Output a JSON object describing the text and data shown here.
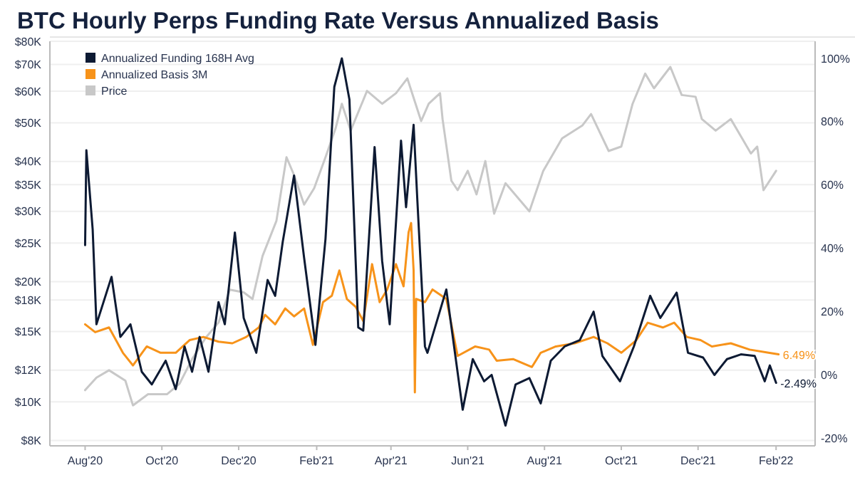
{
  "chart_data": {
    "type": "line",
    "title": "BTC Hourly Perps Funding Rate Versus Annualized Basis",
    "log": "y",
    "grid": "y",
    "legend": "top left",
    "marker": "none",
    "line_style": "solid",
    "xlim": [
      "2020-07-04",
      "2022-03-04"
    ],
    "xticks": [
      {
        "value": "2020-08-01",
        "label": "Aug'20"
      },
      {
        "value": "2020-10-01",
        "label": "Oct'20"
      },
      {
        "value": "2020-12-01",
        "label": "Dec'20"
      },
      {
        "value": "2021-02-01",
        "label": "Feb'21"
      },
      {
        "value": "2021-04-01",
        "label": "Apr'21"
      },
      {
        "value": "2021-06-01",
        "label": "Jun'21"
      },
      {
        "value": "2021-08-01",
        "label": "Aug'21"
      },
      {
        "value": "2021-10-01",
        "label": "Oct'21"
      },
      {
        "value": "2021-12-01",
        "label": "Dec'21"
      },
      {
        "value": "2022-02-01",
        "label": "Feb'22"
      }
    ],
    "ylim": [
      7760,
      80000
    ],
    "yticks": [
      {
        "value": 8000,
        "label": "$8K"
      },
      {
        "value": 10000,
        "label": "$10K"
      },
      {
        "value": 12000,
        "label": "$12K"
      },
      {
        "value": 15000,
        "label": "$15K"
      },
      {
        "value": 18000,
        "label": "$18K"
      },
      {
        "value": 20000,
        "label": "$20K"
      },
      {
        "value": 25000,
        "label": "$25K"
      },
      {
        "value": 30000,
        "label": "$30K"
      },
      {
        "value": 35000,
        "label": "$35K"
      },
      {
        "value": 40000,
        "label": "$40K"
      },
      {
        "value": 50000,
        "label": "$50K"
      },
      {
        "value": 60000,
        "label": "$60K"
      },
      {
        "value": 70000,
        "label": "$70K"
      },
      {
        "value": 80000,
        "label": "$80K"
      }
    ],
    "y2lim": [
      -22.4,
      105.4
    ],
    "y2ticks": [
      {
        "value": -20,
        "label": "-20%"
      },
      {
        "value": 0,
        "label": "0%"
      },
      {
        "value": 20,
        "label": "20%"
      },
      {
        "value": 40,
        "label": "40%"
      },
      {
        "value": 60,
        "label": "60%"
      },
      {
        "value": 80,
        "label": "80%"
      },
      {
        "value": 100,
        "label": "100%"
      }
    ],
    "series": [
      {
        "name": "Annualized Funding 168H Avg",
        "color": "#0d1a33",
        "axis": "y2",
        "x": [
          "2020-08-01",
          "2020-08-02",
          "2020-08-07",
          "2020-08-10",
          "2020-08-22",
          "2020-08-29",
          "2020-09-06",
          "2020-09-15",
          "2020-09-23",
          "2020-10-04",
          "2020-10-12",
          "2020-10-19",
          "2020-10-25",
          "2020-10-31",
          "2020-11-07",
          "2020-11-15",
          "2020-11-20",
          "2020-11-28",
          "2020-12-05",
          "2020-12-15",
          "2020-12-24",
          "2020-12-30",
          "2021-01-05",
          "2021-01-14",
          "2021-01-22",
          "2021-01-31",
          "2021-02-08",
          "2021-02-15",
          "2021-02-21",
          "2021-02-27",
          "2021-03-06",
          "2021-03-10",
          "2021-03-19",
          "2021-03-25",
          "2021-03-31",
          "2021-04-09",
          "2021-04-13",
          "2021-04-19",
          "2021-04-22",
          "2021-04-28",
          "2021-04-30",
          "2021-05-15",
          "2021-05-28",
          "2021-06-05",
          "2021-06-14",
          "2021-06-20",
          "2021-07-01",
          "2021-07-09",
          "2021-07-20",
          "2021-07-29",
          "2021-08-06",
          "2021-08-17",
          "2021-08-29",
          "2021-09-09",
          "2021-09-16",
          "2021-09-30",
          "2021-10-11",
          "2021-10-24",
          "2021-11-01",
          "2021-11-14",
          "2021-11-23",
          "2021-12-05",
          "2021-12-14",
          "2021-12-24",
          "2022-01-04",
          "2022-01-15",
          "2022-01-23",
          "2022-01-27",
          "2022-02-01"
        ],
        "values": [
          41,
          71,
          46,
          16,
          31,
          12,
          16,
          1,
          -3,
          4.5,
          -4.5,
          9,
          1,
          12,
          1,
          23,
          16,
          45,
          18,
          7,
          30,
          25,
          42,
          63,
          37,
          9.5,
          43,
          91,
          100,
          87,
          15,
          14,
          72,
          36,
          16,
          74,
          53,
          79,
          55,
          9,
          7,
          27,
          -11,
          5,
          -2,
          0,
          -16,
          -3,
          -1,
          -9,
          4.5,
          9,
          11,
          20,
          6,
          -2,
          9,
          25,
          18,
          26,
          7,
          5.5,
          0,
          5,
          6.5,
          6,
          -2,
          3,
          -2.49
        ],
        "value_labels": [
          null,
          null,
          null,
          null,
          null,
          null,
          null,
          null,
          null,
          null,
          null,
          null,
          null,
          null,
          null,
          null,
          null,
          null,
          null,
          null,
          null,
          null,
          null,
          null,
          null,
          null,
          null,
          null,
          null,
          null,
          null,
          null,
          null,
          null,
          null,
          null,
          null,
          null,
          null,
          null,
          null,
          null,
          null,
          null,
          null,
          null,
          null,
          null,
          null,
          null,
          null,
          null,
          null,
          null,
          null,
          null,
          null,
          null,
          null,
          null,
          null,
          null,
          null,
          null,
          null,
          null,
          null,
          null,
          "-2.49%"
        ]
      },
      {
        "name": "Annualized Basis 3M",
        "color": "#f7931a",
        "axis": "y2",
        "x": [
          "2020-08-01",
          "2020-08-09",
          "2020-08-20",
          "2020-08-31",
          "2020-09-08",
          "2020-09-19",
          "2020-09-30",
          "2020-10-12",
          "2020-10-23",
          "2020-11-03",
          "2020-11-15",
          "2020-11-26",
          "2020-12-07",
          "2020-12-17",
          "2020-12-22",
          "2020-12-30",
          "2021-01-07",
          "2021-01-14",
          "2021-01-22",
          "2021-01-29",
          "2021-02-06",
          "2021-02-13",
          "2021-02-19",
          "2021-02-25",
          "2021-03-04",
          "2021-03-10",
          "2021-03-17",
          "2021-03-23",
          "2021-03-29",
          "2021-04-05",
          "2021-04-11",
          "2021-04-15",
          "2021-04-17",
          "2021-04-19",
          "2021-04-20",
          "2021-04-21",
          "2021-04-28",
          "2021-05-04",
          "2021-05-15",
          "2021-05-24",
          "2021-06-07",
          "2021-06-18",
          "2021-06-24",
          "2021-07-07",
          "2021-07-22",
          "2021-07-29",
          "2021-08-10",
          "2021-08-25",
          "2021-09-09",
          "2021-09-20",
          "2021-10-01",
          "2021-10-13",
          "2021-10-22",
          "2021-11-03",
          "2021-11-12",
          "2021-11-22",
          "2021-12-03",
          "2021-12-12",
          "2021-12-27",
          "2022-01-11",
          "2022-01-26",
          "2022-02-03"
        ],
        "values": [
          16,
          13.5,
          15,
          7,
          3,
          9,
          7,
          7,
          11,
          12,
          10.5,
          10,
          12,
          15,
          19,
          16,
          21,
          18.5,
          21,
          9.5,
          23,
          25,
          33,
          24,
          21.5,
          17,
          35,
          23,
          27,
          35,
          28,
          45,
          48,
          33,
          -5.5,
          24,
          23,
          27,
          24,
          6,
          9,
          8,
          4.5,
          5,
          2.5,
          7,
          9,
          10,
          12,
          10,
          7,
          11,
          16.5,
          15,
          16.5,
          12,
          11,
          9,
          10,
          8,
          7,
          6.49
        ],
        "value_labels": [
          null,
          null,
          null,
          null,
          null,
          null,
          null,
          null,
          null,
          null,
          null,
          null,
          null,
          null,
          null,
          null,
          null,
          null,
          null,
          null,
          null,
          null,
          null,
          null,
          null,
          null,
          null,
          null,
          null,
          null,
          null,
          null,
          null,
          null,
          null,
          null,
          null,
          null,
          null,
          null,
          null,
          null,
          null,
          null,
          null,
          null,
          null,
          null,
          null,
          null,
          null,
          null,
          null,
          null,
          null,
          null,
          null,
          null,
          null,
          null,
          null,
          "6.49%"
        ]
      },
      {
        "name": "Price",
        "color": "#c8c8c8",
        "axis": "y",
        "x": [
          "2020-08-01",
          "2020-08-10",
          "2020-08-20",
          "2020-09-02",
          "2020-09-08",
          "2020-09-20",
          "2020-10-05",
          "2020-10-15",
          "2020-10-25",
          "2020-11-05",
          "2020-11-15",
          "2020-11-24",
          "2020-12-05",
          "2020-12-12",
          "2020-12-20",
          "2020-12-31",
          "2021-01-08",
          "2021-01-14",
          "2021-01-22",
          "2021-01-30",
          "2021-02-08",
          "2021-02-16",
          "2021-02-21",
          "2021-02-28",
          "2021-03-13",
          "2021-03-25",
          "2021-04-05",
          "2021-04-14",
          "2021-04-25",
          "2021-05-01",
          "2021-05-10",
          "2021-05-12",
          "2021-05-19",
          "2021-05-24",
          "2021-06-01",
          "2021-06-08",
          "2021-06-15",
          "2021-06-22",
          "2021-07-01",
          "2021-07-20",
          "2021-07-31",
          "2021-08-15",
          "2021-08-31",
          "2021-09-07",
          "2021-09-21",
          "2021-10-01",
          "2021-10-10",
          "2021-10-20",
          "2021-10-27",
          "2021-11-09",
          "2021-11-18",
          "2021-11-29",
          "2021-12-04",
          "2021-12-15",
          "2021-12-27",
          "2022-01-05",
          "2022-01-12",
          "2022-01-17",
          "2022-01-22",
          "2022-02-01"
        ],
        "values": [
          10700,
          11500,
          12000,
          11300,
          9800,
          10450,
          10450,
          11100,
          12800,
          14500,
          15800,
          19100,
          18800,
          18100,
          23200,
          28400,
          41000,
          37000,
          31200,
          34300,
          41000,
          48400,
          55800,
          47800,
          60100,
          55800,
          59300,
          64600,
          50500,
          55800,
          59300,
          51100,
          35800,
          33900,
          37900,
          33100,
          40100,
          29600,
          35300,
          30000,
          37900,
          45700,
          49200,
          52600,
          42500,
          43600,
          55800,
          66400,
          61000,
          69000,
          58700,
          58100,
          51100,
          47800,
          51100,
          45700,
          41900,
          43600,
          33900,
          37900
        ]
      }
    ]
  }
}
